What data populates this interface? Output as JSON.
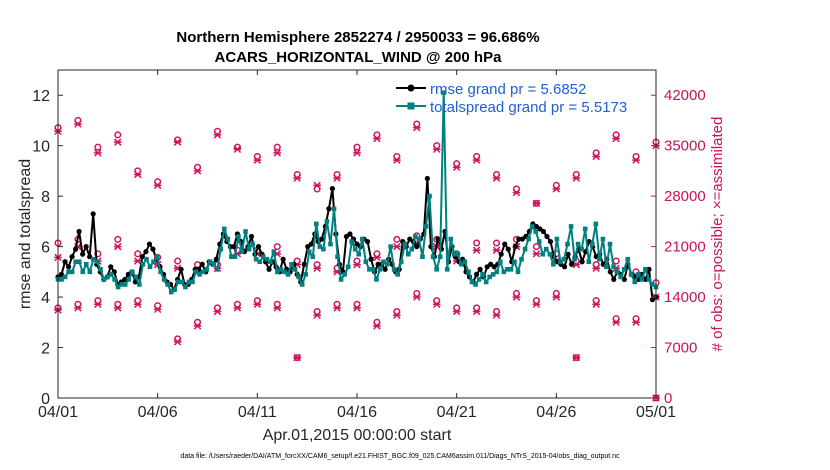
{
  "chart_data": {
    "type": "line",
    "title": "Northern Hemisphere 2852274 / 2950033 = 96.686%",
    "subtitle": "ACARS_HORIZONTAL_WIND @ 200 hPa",
    "xlabel": "Apr.01,2015 00:00:00 start",
    "ylabel": "rmse and totalspread",
    "y2label": "# of obs: o=possible; ×=assimilated",
    "x_tick_labels": [
      "04/01",
      "04/06",
      "04/11",
      "04/16",
      "04/21",
      "04/26",
      "05/01"
    ],
    "y_ticks": [
      0,
      2,
      4,
      6,
      8,
      10,
      12
    ],
    "y2_ticks": [
      0,
      7000,
      14000,
      21000,
      28000,
      35000,
      42000
    ],
    "xlim": [
      0,
      30
    ],
    "ylim": [
      0,
      13
    ],
    "y2lim": [
      0,
      45500
    ],
    "footnote": "data file: /Users/raeder/DAI/ATM_forcXX/CAM6_setup/f.e21.FHIST_BGC.f09_025.CAM6assim.011/Diags_NTrS_2015-04/obs_diag_output.nc",
    "legend_position": "top-right",
    "series": [
      {
        "name": "rmse grand pr = 5.6852",
        "color": "#000000",
        "values": [
          4.8,
          4.9,
          5.4,
          5.2,
          5.6,
          5.9,
          6.6,
          5.7,
          6.0,
          5.6,
          7.3,
          5.3,
          5.0,
          4.7,
          4.8,
          5.2,
          5.0,
          4.5,
          4.6,
          4.7,
          4.9,
          5.0,
          4.6,
          4.8,
          5.6,
          5.8,
          6.1,
          5.9,
          5.5,
          5.2,
          4.9,
          4.6,
          4.5,
          4.3,
          4.7,
          5.1,
          4.5,
          4.5,
          4.7,
          5.1,
          5.1,
          5.3,
          5.0,
          5.4,
          5.3,
          5.5,
          6.1,
          6.5,
          6.2,
          6.0,
          6.0,
          6.5,
          6.2,
          5.8,
          6.0,
          6.4,
          5.7,
          6.0,
          5.7,
          5.4,
          5.1,
          5.4,
          5.2,
          5.0,
          5.5,
          5.1,
          5.0,
          5.3,
          4.9,
          4.6,
          5.3,
          6.0,
          6.1,
          6.5,
          6.2,
          6.3,
          6.8,
          7.5,
          8.3,
          6.5,
          5.3,
          5.0,
          6.4,
          6.5,
          6.3,
          6.1,
          6.0,
          6.3,
          6.2,
          5.5,
          5.0,
          5.3,
          5.3,
          5.1,
          5.5,
          5.3,
          5.0,
          5.1,
          6.2,
          6.0,
          6.3,
          6.2,
          6.0,
          6.3,
          6.5,
          8.7,
          6.0,
          5.6,
          6.3,
          5.9,
          6.6,
          5.4,
          6.0,
          5.6,
          5.4,
          5.5,
          5.0,
          4.8,
          4.6,
          4.9,
          5.1,
          4.8,
          5.2,
          5.3,
          5.2,
          5.3,
          5.7,
          6.1,
          5.9,
          5.4,
          6.0,
          6.3,
          6.3,
          6.4,
          6.6,
          6.9,
          6.8,
          6.7,
          6.6,
          6.4,
          6.2,
          5.6,
          5.4,
          5.3,
          5.2,
          5.7,
          5.3,
          5.6,
          5.9,
          5.4,
          5.8,
          6.2,
          6.0,
          5.6,
          5.7,
          5.3,
          5.5,
          5.0,
          4.7,
          5.0,
          4.9,
          4.7,
          5.3,
          4.9,
          4.8,
          4.7,
          4.9,
          4.7,
          5.1,
          3.9,
          4.0
        ]
      },
      {
        "name": "totalspread grand pr = 5.5173",
        "color": "#008080",
        "values": [
          4.7,
          4.7,
          4.8,
          5.0,
          5.0,
          5.4,
          5.4,
          5.0,
          5.3,
          5.0,
          5.5,
          5.4,
          5.1,
          4.7,
          4.8,
          4.9,
          4.7,
          4.4,
          4.5,
          4.5,
          4.7,
          5.0,
          4.8,
          4.5,
          5.3,
          5.5,
          5.2,
          5.4,
          5.6,
          5.0,
          4.7,
          4.5,
          4.2,
          4.3,
          4.6,
          4.6,
          4.4,
          4.6,
          4.6,
          5.0,
          4.9,
          5.0,
          5.1,
          5.4,
          5.3,
          5.1,
          5.9,
          6.7,
          6.3,
          5.6,
          5.6,
          6.4,
          5.8,
          6.6,
          5.9,
          6.1,
          5.5,
          5.4,
          5.6,
          5.5,
          5.4,
          5.8,
          5.0,
          5.1,
          5.0,
          4.9,
          5.3,
          5.1,
          4.8,
          4.5,
          4.9,
          5.8,
          5.6,
          6.9,
          6.0,
          5.9,
          7.0,
          6.1,
          7.5,
          5.6,
          4.7,
          4.9,
          5.2,
          6.2,
          5.9,
          5.7,
          6.3,
          5.4,
          5.1,
          5.1,
          4.7,
          5.1,
          5.4,
          5.3,
          6.0,
          5.1,
          4.9,
          5.4,
          6.1,
          5.7,
          5.9,
          6.4,
          6.3,
          5.6,
          6.8,
          8.0,
          5.6,
          5.1,
          5.6,
          12.1,
          5.1,
          6.3,
          5.7,
          5.7,
          5.3,
          5.4,
          5.0,
          4.6,
          4.5,
          4.7,
          4.9,
          4.6,
          4.8,
          4.9,
          5.0,
          5.4,
          5.0,
          5.1,
          5.1,
          5.4,
          5.0,
          5.5,
          5.9,
          6.3,
          6.8,
          6.6,
          6.2,
          5.7,
          5.9,
          5.7,
          5.3,
          6.3,
          5.4,
          5.5,
          6.1,
          6.8,
          5.5,
          6.1,
          5.9,
          6.7,
          5.4,
          6.1,
          6.9,
          5.5,
          6.3,
          5.2,
          6.1,
          5.2,
          5.0,
          4.8,
          5.1,
          5.5,
          4.9,
          4.6,
          4.9,
          4.7,
          5.1,
          4.7,
          4.5,
          4.4
        ]
      }
    ],
    "obs_count_groups": [
      {
        "day": 0,
        "points": [
          [
            37500,
            37000
          ],
          [
            21500,
            19500
          ],
          [
            12500,
            12200
          ]
        ]
      },
      {
        "day": 1,
        "points": [
          [
            38500,
            38000
          ],
          [
            22000,
            21000
          ],
          [
            13000,
            12500
          ]
        ]
      },
      {
        "day": 2,
        "points": [
          [
            34800,
            34000
          ],
          [
            20000,
            19000
          ],
          [
            13500,
            13000
          ]
        ]
      },
      {
        "day": 3,
        "points": [
          [
            36500,
            35500
          ],
          [
            22000,
            21000
          ],
          [
            13000,
            12500
          ]
        ]
      },
      {
        "day": 4,
        "points": [
          [
            31500,
            31000
          ],
          [
            20000,
            19000
          ],
          [
            13500,
            13000
          ]
        ]
      },
      {
        "day": 5,
        "points": [
          [
            30000,
            29500
          ],
          [
            19500,
            18500
          ],
          [
            12800,
            12300
          ]
        ]
      },
      {
        "day": 6,
        "points": [
          [
            35800,
            35500
          ],
          [
            19000,
            18000
          ],
          [
            8200,
            7800
          ]
        ]
      },
      {
        "day": 7,
        "points": [
          [
            32000,
            31500
          ],
          [
            18500,
            17500
          ],
          [
            10500,
            10000
          ]
        ]
      },
      {
        "day": 8,
        "points": [
          [
            37000,
            36500
          ],
          [
            18500,
            18000
          ],
          [
            12500,
            12000
          ]
        ]
      },
      {
        "day": 9,
        "points": [
          [
            34800,
            34500
          ],
          [
            20500,
            20000
          ],
          [
            13000,
            12500
          ]
        ]
      },
      {
        "day": 10,
        "points": [
          [
            33500,
            33000
          ],
          [
            20500,
            20000
          ],
          [
            13500,
            13000
          ]
        ]
      },
      {
        "day": 11,
        "points": [
          [
            34800,
            34000
          ],
          [
            21000,
            20000
          ],
          [
            13000,
            12500
          ]
        ]
      },
      {
        "day": 12,
        "points": [
          [
            31000,
            30500
          ],
          [
            19000,
            18500
          ],
          [
            5600,
            5600
          ]
        ]
      },
      {
        "day": 13,
        "points": [
          [
            29000,
            29500
          ],
          [
            18500,
            18000
          ],
          [
            12000,
            11500
          ]
        ]
      },
      {
        "day": 14,
        "points": [
          [
            31000,
            30500
          ],
          [
            18000,
            17500
          ],
          [
            13000,
            12500
          ]
        ]
      },
      {
        "day": 15,
        "points": [
          [
            34800,
            34000
          ],
          [
            19000,
            18500
          ],
          [
            13000,
            12500
          ]
        ]
      },
      {
        "day": 16,
        "points": [
          [
            36500,
            36000
          ],
          [
            20000,
            19500
          ],
          [
            10500,
            10000
          ]
        ]
      },
      {
        "day": 17,
        "points": [
          [
            33500,
            33000
          ],
          [
            22000,
            21000
          ],
          [
            12000,
            11500
          ]
        ]
      },
      {
        "day": 18,
        "points": [
          [
            38000,
            37500
          ],
          [
            22500,
            21500
          ],
          [
            14500,
            14000
          ]
        ]
      },
      {
        "day": 19,
        "points": [
          [
            35000,
            34500
          ],
          [
            22000,
            21000
          ],
          [
            13500,
            13000
          ]
        ]
      },
      {
        "day": 20,
        "points": [
          [
            32500,
            32000
          ],
          [
            20000,
            19000
          ],
          [
            12500,
            12000
          ]
        ]
      },
      {
        "day": 21,
        "points": [
          [
            33500,
            33000
          ],
          [
            21500,
            20500
          ],
          [
            12500,
            12000
          ]
        ]
      },
      {
        "day": 22,
        "points": [
          [
            31000,
            30500
          ],
          [
            21500,
            20500
          ],
          [
            12000,
            11500
          ]
        ]
      },
      {
        "day": 23,
        "points": [
          [
            29000,
            28500
          ],
          [
            22000,
            21000
          ],
          [
            14500,
            14000
          ]
        ]
      },
      {
        "day": 24,
        "points": [
          [
            27000,
            27000
          ],
          [
            21000,
            20000
          ],
          [
            13500,
            13000
          ]
        ]
      },
      {
        "day": 25,
        "points": [
          [
            29500,
            29000
          ],
          [
            20000,
            19000
          ],
          [
            14500,
            14000
          ]
        ]
      },
      {
        "day": 26,
        "points": [
          [
            31000,
            30500
          ],
          [
            19000,
            18500
          ],
          [
            5600,
            5600
          ]
        ]
      },
      {
        "day": 27,
        "points": [
          [
            34000,
            33500
          ],
          [
            18500,
            18000
          ],
          [
            13500,
            13000
          ]
        ]
      },
      {
        "day": 28,
        "points": [
          [
            36500,
            36000
          ],
          [
            19000,
            18000
          ],
          [
            11000,
            10500
          ]
        ]
      },
      {
        "day": 29,
        "points": [
          [
            33500,
            33000
          ],
          [
            17500,
            17000
          ],
          [
            11000,
            10500
          ]
        ]
      },
      {
        "day": 30,
        "points": [
          [
            35500,
            35000
          ],
          [
            16000,
            14000
          ],
          [
            0,
            0
          ]
        ]
      }
    ]
  }
}
